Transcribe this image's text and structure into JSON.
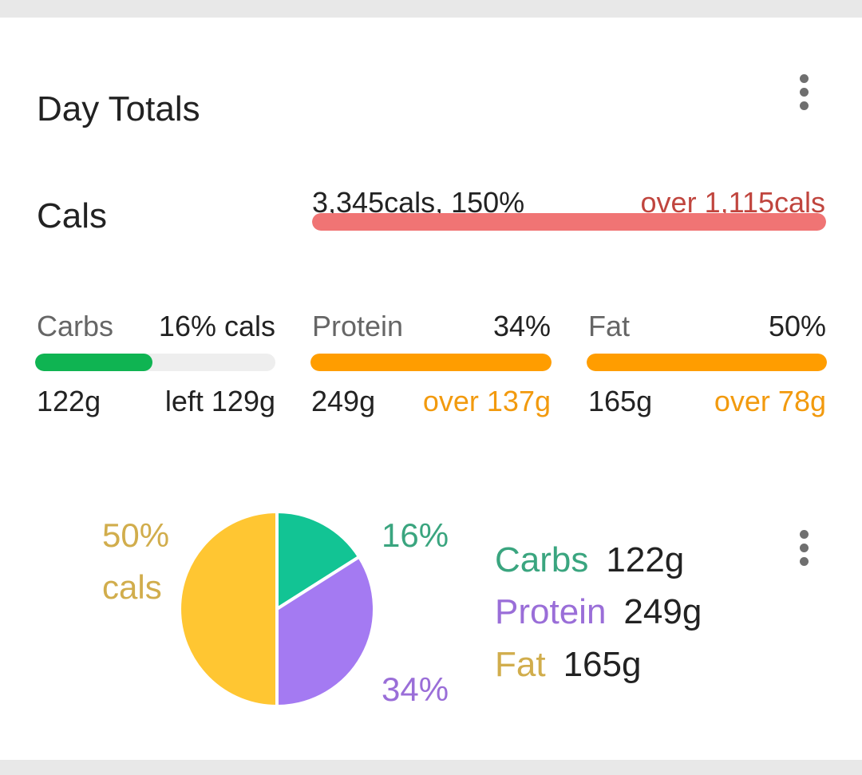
{
  "card": {
    "title": "Day Totals",
    "menu_icon": "more-vert-icon"
  },
  "calories": {
    "label": "Cals",
    "value_text": "3,345cals, 150%",
    "over_text": "over 1,115cals",
    "progress_fraction": 1.0,
    "bar_color": "#f07474",
    "over_color": "#c0453e"
  },
  "macros": [
    {
      "key": "carbs",
      "name": "Carbs",
      "pct_text": "16% cals",
      "grams": "122g",
      "remaining_text": "left 129g",
      "remaining_color": "#222222",
      "progress_fraction": 0.49,
      "bar_color": "#0fb452"
    },
    {
      "key": "protein",
      "name": "Protein",
      "pct_text": "34%",
      "grams": "249g",
      "remaining_text": "over 137g",
      "remaining_color": "#f29a0e",
      "progress_fraction": 1.0,
      "bar_color": "#ff9d00"
    },
    {
      "key": "fat",
      "name": "Fat",
      "pct_text": "50%",
      "grams": "165g",
      "remaining_text": "over 78g",
      "remaining_color": "#f29a0e",
      "progress_fraction": 1.0,
      "bar_color": "#ff9d00"
    }
  ],
  "chart_data": {
    "type": "pie",
    "slices": [
      {
        "name": "Carbs",
        "value": 16,
        "color": "#12c494"
      },
      {
        "name": "Protein",
        "value": 34,
        "color": "#a47af2"
      },
      {
        "name": "Fat",
        "value": 50,
        "color": "#ffc632"
      }
    ],
    "labels": {
      "fat_pct": "50%",
      "fat_unit": "cals",
      "carbs_pct": "16%",
      "protein_pct": "34%"
    },
    "label_colors": {
      "carbs": "#3aa57f",
      "protein": "#9a6ed8",
      "fat": "#d1ad4c"
    },
    "legend": [
      {
        "name": "Carbs",
        "value": "122g"
      },
      {
        "name": "Protein",
        "value": "249g"
      },
      {
        "name": "Fat",
        "value": "165g"
      }
    ],
    "menu_icon": "more-vert-icon"
  }
}
